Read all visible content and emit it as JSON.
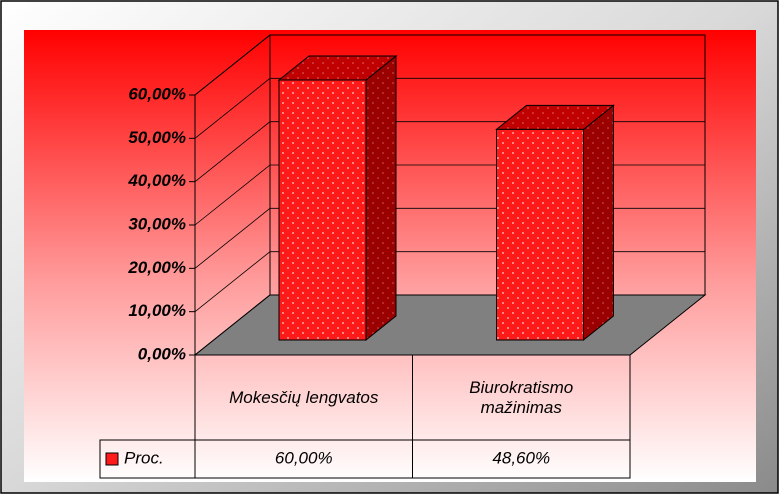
{
  "chart_data": {
    "type": "bar3d",
    "categories": [
      "Mokesčių lengvatos",
      "Biurokratismo mažinimas"
    ],
    "series": [
      {
        "name": "Proc.",
        "color": "#ff1a1a",
        "values": [
          60,
          48.6
        ],
        "value_labels": [
          "60,00%",
          "48,60%"
        ]
      }
    ],
    "ylim": [
      0,
      60
    ],
    "yticks": [
      {
        "value": 0,
        "label": "0,00%"
      },
      {
        "value": 10,
        "label": "10,00%"
      },
      {
        "value": 20,
        "label": "20,00%"
      },
      {
        "value": 30,
        "label": "30,00%"
      },
      {
        "value": 40,
        "label": "40,00%"
      },
      {
        "value": 50,
        "label": "50,00%"
      },
      {
        "value": 60,
        "label": "60,00%"
      }
    ],
    "grid": true
  }
}
